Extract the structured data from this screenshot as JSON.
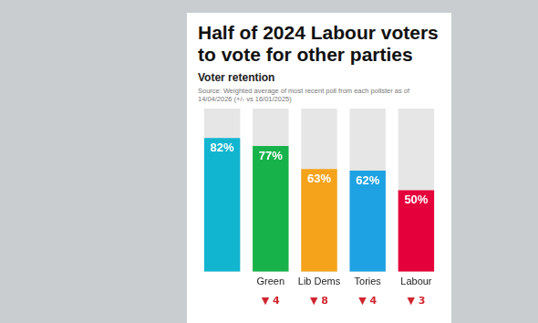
{
  "chart_data": {
    "type": "bar",
    "title": "Half of 2024 Labour voters to vote for other parties",
    "subtitle": "Voter retention",
    "source": "Source: Weighted average of most recent poll from each pollster as of 14/04/2026 (+/- vs 16/01/2025)",
    "categories": [
      null,
      "Green",
      "Lib Dems",
      "Tories",
      "Labour"
    ],
    "values": [
      82,
      77,
      63,
      62,
      50
    ],
    "value_labels": [
      "82%",
      "77%",
      "63%",
      "62%",
      "50%"
    ],
    "colors": [
      "#12b5cf",
      "#17b34a",
      "#f5a31a",
      "#1ea2e3",
      "#e4003b"
    ],
    "changes": [
      null,
      -4,
      -8,
      -4,
      -3
    ],
    "change_labels": [
      null,
      "▼ 4",
      "▼ 8",
      "▼ 4",
      "▼ 3"
    ],
    "ylim": [
      0,
      100
    ],
    "grid": false,
    "data_labels": true,
    "tick_labels": "x"
  }
}
